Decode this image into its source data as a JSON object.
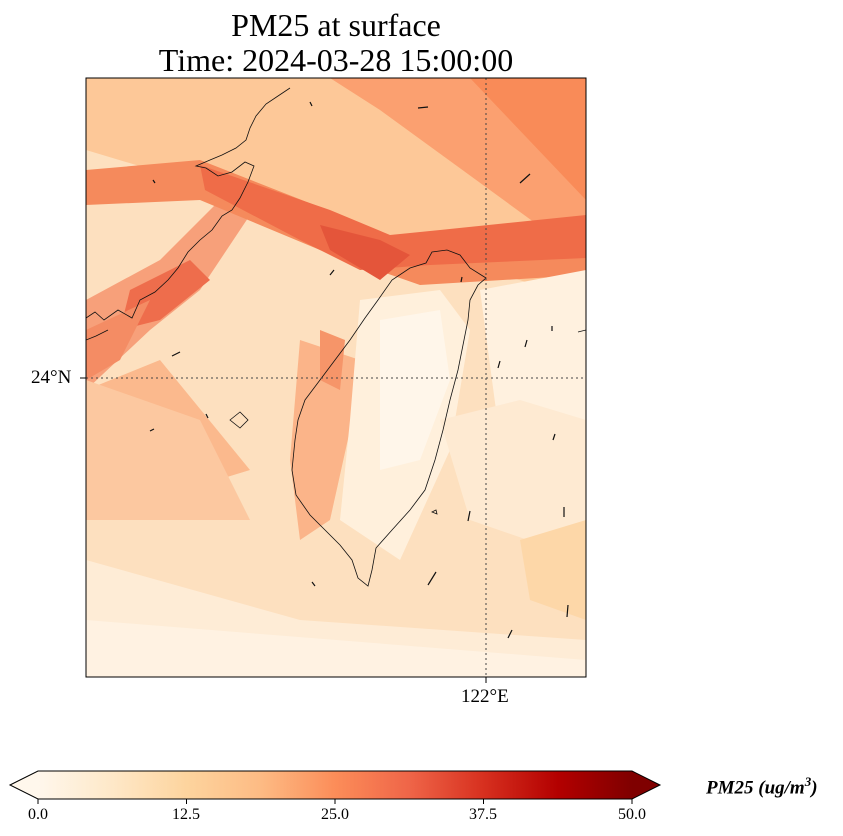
{
  "title": {
    "line1": "PM25 at surface",
    "line2": "Time: 2024-03-28 15:00:00"
  },
  "axes": {
    "lat_tick_label": "24°N",
    "lon_tick_label": "122°E",
    "lat_tick_value": 24,
    "lon_tick_value": 122,
    "gridlines": "dotted"
  },
  "colorbar": {
    "label_main": "PM25 (ug/m",
    "label_exp": "3",
    "label_close": ")",
    "ticks": [
      "0.0",
      "12.5",
      "25.0",
      "37.5",
      "50.0"
    ],
    "min": 0,
    "max": 50,
    "extend": "both",
    "colormap": "OrRd",
    "colors": [
      "#fff7ec",
      "#fee8c8",
      "#fdd49e",
      "#fdbb84",
      "#fc8d59",
      "#ef6548",
      "#d7301f",
      "#b30000",
      "#7f0000"
    ]
  }
}
